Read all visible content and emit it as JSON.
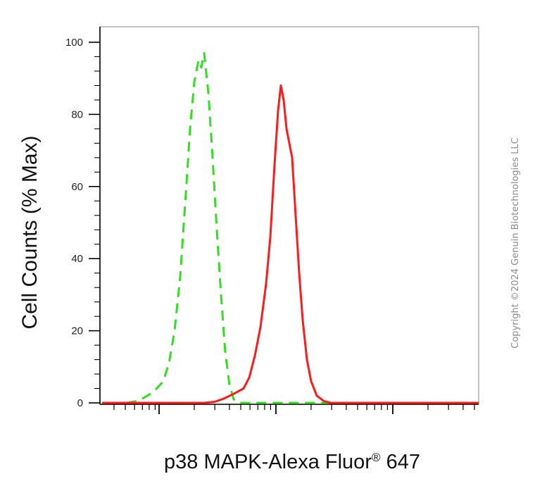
{
  "chart_data": {
    "type": "line",
    "title": "",
    "xlabel": "p38 MAPK-Alexa Fluor",
    "xlabel_mark": "®",
    "xlabel_suffix": " 647",
    "ylabel": "Cell Counts (% Max)",
    "ylim": [
      0,
      100
    ],
    "yticks": [
      0,
      20,
      40,
      60,
      80,
      100
    ],
    "x_scale": "log (unlabeled decades)",
    "grid": false,
    "legend": "none",
    "series": [
      {
        "style": "dashed",
        "color": "#33dd22",
        "points": [
          [
            180,
            0
          ],
          [
            195,
            0.5
          ],
          [
            205,
            1.5
          ],
          [
            218,
            3
          ],
          [
            232,
            6
          ],
          [
            240,
            11
          ],
          [
            248,
            20
          ],
          [
            256,
            35
          ],
          [
            264,
            58
          ],
          [
            270,
            76
          ],
          [
            276,
            89
          ],
          [
            282,
            95
          ],
          [
            286,
            93
          ],
          [
            290,
            97
          ],
          [
            296,
            86
          ],
          [
            302,
            68
          ],
          [
            308,
            48
          ],
          [
            314,
            30
          ],
          [
            320,
            14
          ],
          [
            326,
            5
          ],
          [
            332,
            1
          ],
          [
            340,
            0
          ],
          [
            355,
            0
          ],
          [
            420,
            0
          ],
          [
            600,
            0
          ]
        ]
      },
      {
        "style": "solid",
        "color": "#ff1a1a",
        "points": [
          [
            145,
            0
          ],
          [
            290,
            0
          ],
          [
            305,
            0.3
          ],
          [
            318,
            1.2
          ],
          [
            332,
            2.5
          ],
          [
            346,
            4
          ],
          [
            354,
            7
          ],
          [
            362,
            13
          ],
          [
            370,
            21
          ],
          [
            378,
            33
          ],
          [
            384,
            46
          ],
          [
            390,
            66
          ],
          [
            395,
            81
          ],
          [
            399,
            88
          ],
          [
            403,
            84
          ],
          [
            407,
            76
          ],
          [
            411,
            72
          ],
          [
            415,
            68
          ],
          [
            420,
            52
          ],
          [
            425,
            36
          ],
          [
            430,
            23
          ],
          [
            436,
            12
          ],
          [
            442,
            6
          ],
          [
            450,
            2
          ],
          [
            460,
            0.5
          ],
          [
            470,
            0
          ],
          [
            680,
            0
          ]
        ]
      }
    ]
  },
  "copyright": "Copyright ©2024 Genuin Biotechnologies LLC"
}
